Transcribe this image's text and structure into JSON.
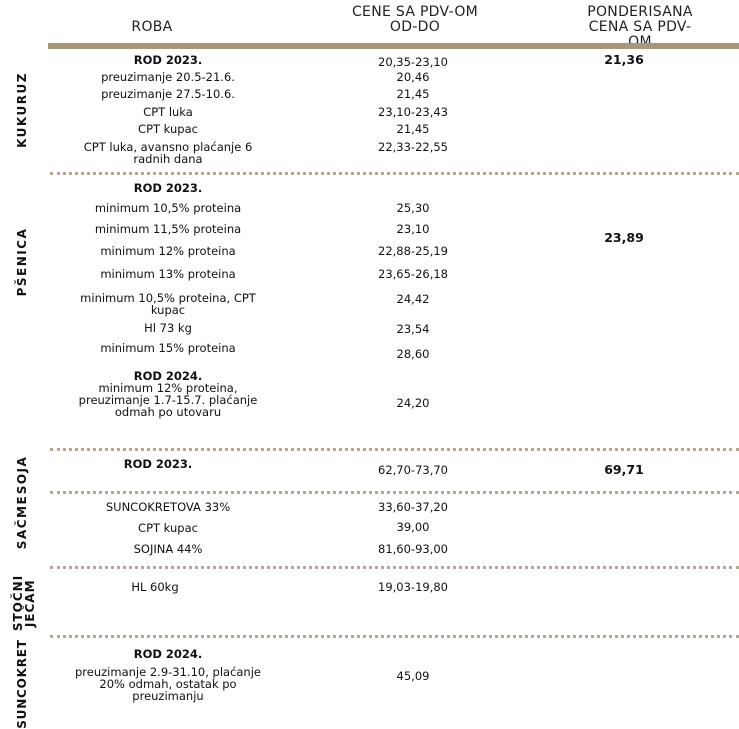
{
  "header": {
    "col1": "ROBA",
    "col2_line1": "CENE SA PDV-OM",
    "col2_line2": "OD-DO",
    "col3_line1": "PONDERISANA",
    "col3_line2": "CENA SA PDV-OM"
  },
  "colors": {
    "accent_bar": "#a8977a",
    "divider": "#b5a88f"
  },
  "kukuruz": {
    "label": "KUKURUZ",
    "weighted": "21,36",
    "rows": [
      {
        "item": "ROD 2023.",
        "price": "20,35-23,10"
      },
      {
        "item": "preuzimanje 20.5-21.6.",
        "price": "20,46"
      },
      {
        "item": "preuzimanje 27.5-10.6.",
        "price": "21,45"
      },
      {
        "item": "CPT luka",
        "price": "23,10-23,43"
      },
      {
        "item": "CPT kupac",
        "price": "21,45"
      },
      {
        "item": "CPT luka, avansno plaćanje 6",
        "item2": "radnih dana",
        "price": "22,33-22,55"
      }
    ]
  },
  "psenica": {
    "label": "PŠENICA",
    "weighted": "23,89",
    "rows": [
      {
        "item": "ROD 2023."
      },
      {
        "item": "minimum 10,5% proteina",
        "price": "25,30"
      },
      {
        "item": "minimum 11,5% proteina",
        "price": "23,10"
      },
      {
        "item": "minimum 12% proteina",
        "price": "22,88-25,19"
      },
      {
        "item": "minimum 13% proteina",
        "price": "23,65-26,18"
      },
      {
        "item": "minimum 10,5% proteina, CPT",
        "item2": "kupac",
        "price": "24,42"
      },
      {
        "item": "Hl 73 kg",
        "price": "23,54"
      },
      {
        "item": "minimum 15% proteina",
        "price": "28,60"
      },
      {
        "item": "ROD 2024.",
        "item2": "minimum 12% proteina,",
        "item3": "preuzimanje 1.7-15.7. plaćanje",
        "item4": "odmah po utovaru",
        "price": "24,20"
      }
    ]
  },
  "soja": {
    "label": "SOJA",
    "weighted": "69,71",
    "rows": [
      {
        "item": "ROD 2023.",
        "price": "62,70-73,70"
      }
    ]
  },
  "sacme": {
    "label": "SAČME",
    "rows": [
      {
        "item": "SUNCOKRETOVA 33%",
        "price": "33,60-37,20"
      },
      {
        "item": "CPT kupac",
        "price": "39,00"
      },
      {
        "item": "SOJINA 44%",
        "price": "81,60-93,00"
      }
    ]
  },
  "jecam": {
    "label1": "STOČNI",
    "label2": "JEČAM",
    "rows": [
      {
        "item": "HL 60kg",
        "price": "19,03-19,80"
      }
    ]
  },
  "suncokret": {
    "label": "SUNCOKRET",
    "rows": [
      {
        "item": "ROD 2024.",
        "item2": "preuzimanje 2.9-31.10, plaćanje",
        "item3": "20% odmah, ostatak po",
        "item4": "preuzimanju",
        "price": "45,09"
      }
    ]
  }
}
